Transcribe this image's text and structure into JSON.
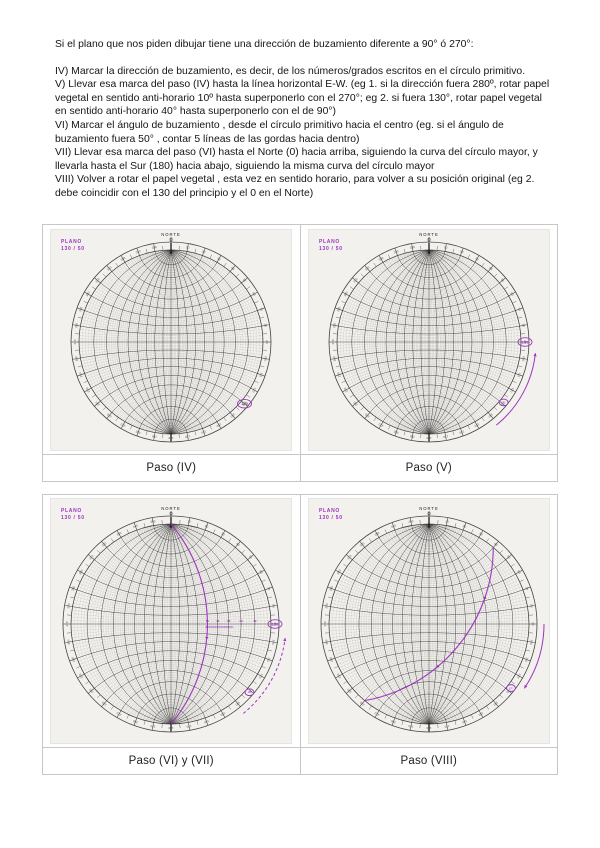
{
  "doc": {
    "intro": "Si el plano que nos piden dibujar tiene una dirección de buzamiento diferente a 90° ó 270°:",
    "steps": [
      "IV) Marcar la dirección de buzamiento, es decir, de los números/grados escritos en el círculo primitivo.",
      "V) Llevar esa marca del paso (IV) hasta la línea horizontal E-W. (eg 1. si la dirección fuera 280º, rotar papel vegetal en sentido anti-horario 10º hasta superponerlo con el 270°;  eg 2. si fuera 130°, rotar papel vegetal en sentido anti-horario 40° hasta superponerlo con el de 90°)",
      "VI) Marcar el ángulo de buzamiento , desde el círculo primitivo hacia el centro (eg. si el ángulo de buzamiento fuera 50° , contar 5 líneas de las gordas hacia dentro)",
      "VII) Llevar esa marca del paso (VI) hasta el Norte (0) hacia arriba, siguiendo la curva del círculo mayor, y llevarla  hasta el Sur (180) hacia abajo, siguiendo la misma curva del círculo mayor",
      "VIII) Volver a rotar el papel vegetal , esta vez en sentido horario, para volver a su posición original (eg 2. debe coincidir con el 130 del principio y el 0 en el Norte)"
    ]
  },
  "net": {
    "degree_step": 2,
    "bold_step": 10,
    "ring_tick_step": 5,
    "ring_label_step": 10
  },
  "colors": {
    "annotation": "#9b34bd",
    "ink": "#1c1c1c",
    "net_dark": "#2b2b2b",
    "net_light": "#6f6f6f",
    "ring": "#444444",
    "ring_label": "#555555",
    "scan_bg": "#f3f1ed",
    "border": "#c7c7c7"
  },
  "panels": [
    {
      "caption": "Paso (IV)",
      "plano_line1": "PLANO",
      "plano_line2": "130 / 50",
      "north_label": "NORTE",
      "north_value": "0",
      "ann": {
        "rim_marks": [
          {
            "az": 130,
            "label": "130",
            "label_color": "#5a5a5a",
            "small": false
          }
        ]
      }
    },
    {
      "caption": "Paso (V)",
      "plano_line1": "PLANO",
      "plano_line2": "130 / 50",
      "north_label": "NORTE",
      "north_value": "0",
      "ann": {
        "rim_marks": [
          {
            "az": 90,
            "label": "130",
            "small": false
          },
          {
            "az": 129,
            "label": "130",
            "small": true
          }
        ],
        "rot_arrow": {
          "from": 141,
          "to": 96,
          "dashed": false
        }
      }
    },
    {
      "caption": "Paso (VI) y (VII)",
      "plano_line1": "PLANO",
      "plano_line2": "130 / 50",
      "north_label": "NORTE",
      "north_value": "0",
      "ann": {
        "rim_marks": [
          {
            "az": 90,
            "label": "130",
            "small": false
          },
          {
            "az": 131,
            "label": "130",
            "small": true
          }
        ],
        "rot_arrow": {
          "from": 141,
          "to": 97,
          "dashed": true
        },
        "great_circle": {
          "trend": 90,
          "dip": 50,
          "arrows": [
            {
              "t": 0.56,
              "dir": 1
            }
          ]
        },
        "equator_counts": {
          "labels": [
            "10",
            "20",
            "30",
            "40",
            "50"
          ],
          "arrow": true
        }
      }
    },
    {
      "caption": "Paso (VIII)",
      "plano_line1": "PLANO",
      "plano_line2": "130 / 50",
      "north_label": "NORTE",
      "north_value": "0",
      "ann": {
        "rim_marks": [
          {
            "az": 128,
            "label": "130",
            "small": true
          }
        ],
        "rot_arrow": {
          "from": 90,
          "to": 124,
          "dashed": false
        },
        "great_circle": {
          "trend": 130,
          "dip": 50,
          "arrows": [
            {
              "t": 0.24,
              "dir": -1
            },
            {
              "t": 0.62,
              "dir": 1
            }
          ]
        }
      }
    }
  ]
}
